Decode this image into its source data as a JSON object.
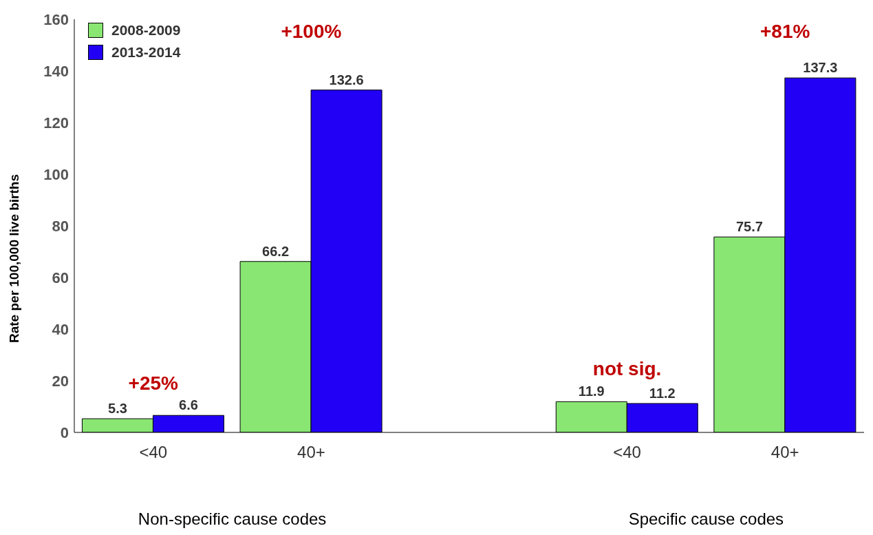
{
  "chart_data": {
    "type": "bar",
    "ylabel": "Rate per 100,000 live births",
    "categories": [
      "<40",
      "40+",
      null,
      "<40",
      "40+"
    ],
    "series": [
      {
        "name": "2008-2009",
        "color": "#89e673",
        "values": [
          5.3,
          66.2,
          null,
          11.9,
          75.7
        ]
      },
      {
        "name": "2013-2014",
        "color": "#2200f5",
        "values": [
          6.6,
          132.6,
          null,
          11.2,
          137.3
        ]
      }
    ],
    "ylim": [
      0,
      160
    ],
    "yticks": [
      0,
      20,
      40,
      60,
      80,
      100,
      120,
      140,
      160
    ],
    "grid": false,
    "legend": "top left",
    "data_labels": true,
    "annotations": [
      "+25%",
      "+100%",
      "not sig.",
      "+81%",
      "Non-specific cause codes",
      "Specific cause codes"
    ]
  }
}
